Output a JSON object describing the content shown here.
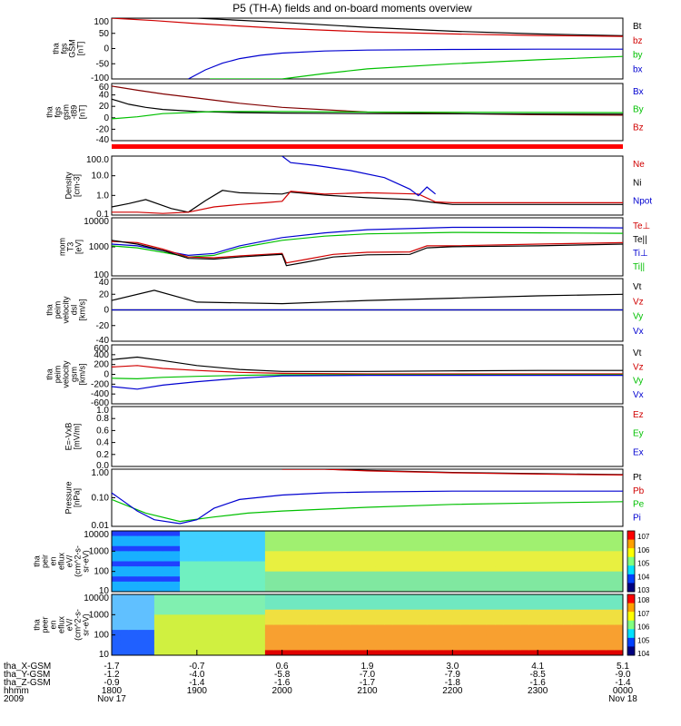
{
  "title": "P5 (TH-A) fields and on-board moments overview",
  "chart_data": [
    {
      "type": "line",
      "panel": "B field GSM",
      "ylabel": [
        "tha",
        "fgs",
        "GSM",
        "[nT]"
      ],
      "ylim": [
        -100,
        100
      ],
      "yticks": [
        "100",
        "50",
        "0",
        "-50",
        "-100"
      ],
      "legend": [
        {
          "name": "Bt",
          "color": "#000000"
        },
        {
          "name": "bz",
          "color": "#d00000"
        },
        {
          "name": "by",
          "color": "#00c000"
        },
        {
          "name": "bx",
          "color": "#0000d0"
        }
      ],
      "series": [
        {
          "name": "Bt",
          "color": "#000000",
          "x": [
            0.0,
            0.5,
            1.0,
            2.0,
            3.0,
            4.0,
            5.0,
            6.0
          ],
          "y": [
            150,
            125,
            108,
            86,
            70,
            57,
            48,
            42
          ]
        },
        {
          "name": "bz",
          "color": "#d00000",
          "x": [
            0.0,
            0.5,
            1.0,
            2.0,
            3.0,
            4.0,
            5.0,
            6.0
          ],
          "y": [
            105,
            92,
            82,
            66,
            55,
            48,
            43,
            40
          ]
        },
        {
          "name": "by",
          "color": "#00c000",
          "x": [
            1.15,
            1.5,
            2.0,
            2.5,
            3.0,
            4.0,
            5.0,
            6.0
          ],
          "y": [
            -150,
            -125,
            -100,
            -82,
            -67,
            -50,
            -37,
            -26
          ]
        },
        {
          "name": "bx",
          "color": "#0000d0",
          "x": [
            0.9,
            1.1,
            1.3,
            1.5,
            1.75,
            2.0,
            2.5,
            3.0,
            4.0,
            5.0,
            6.0
          ],
          "y": [
            -100,
            -70,
            -48,
            -33,
            -22,
            -15,
            -8,
            -5,
            -3,
            -2,
            -2
          ]
        }
      ]
    },
    {
      "type": "line",
      "panel": "B field GSM minus T89",
      "ylabel": [
        "tha",
        "fgs",
        "gsm",
        "-t89",
        "[nT]"
      ],
      "ylim": [
        -50,
        60
      ],
      "yticks": [
        "60",
        "40",
        "20",
        "0",
        "-20",
        "-40"
      ],
      "legend": [
        {
          "name": "Bx",
          "color": "#0000d0"
        },
        {
          "name": "By",
          "color": "#00c000"
        },
        {
          "name": "Bz",
          "color": "#d00000"
        }
      ],
      "series": [
        {
          "name": "Bz",
          "color": "#800000",
          "x": [
            0.0,
            0.3,
            0.6,
            1.0,
            1.5,
            2.0,
            3.0,
            4.0,
            5.0,
            6.0
          ],
          "y": [
            55,
            47,
            40,
            32,
            22,
            14,
            5,
            2,
            0,
            -1
          ]
        },
        {
          "name": "Bx",
          "color": "#000000",
          "x": [
            0.0,
            0.2,
            0.4,
            0.6,
            1.0,
            1.5,
            2.0,
            3.0,
            6.0
          ],
          "y": [
            30,
            20,
            14,
            10,
            6,
            4,
            3,
            2,
            1
          ]
        },
        {
          "name": "By",
          "color": "#00c000",
          "x": [
            0.0,
            0.3,
            0.6,
            0.9,
            1.2,
            1.5,
            2.0,
            3.0,
            6.0
          ],
          "y": [
            -8,
            -4,
            2,
            4,
            6,
            6,
            6,
            5,
            4
          ]
        }
      ]
    },
    {
      "type": "bar",
      "panel": "quality flag",
      "color": "#ff0000"
    },
    {
      "type": "line",
      "panel": "Density",
      "ylabel": [
        "Density",
        "[cm-3]"
      ],
      "yscale": "log",
      "ylim": [
        0.08,
        300
      ],
      "yticks": [
        "100.0",
        "10.0",
        "1.0",
        "0.1"
      ],
      "legend": [
        {
          "name": "Ne",
          "color": "#d00000"
        },
        {
          "name": "Ni",
          "color": "#000000"
        },
        {
          "name": "Npot",
          "color": "#0000d0"
        }
      ],
      "series": [
        {
          "name": "Ni",
          "color": "#000000",
          "x": [
            0.0,
            0.2,
            0.4,
            0.7,
            0.9,
            1.1,
            1.3,
            1.5,
            1.8,
            2.0,
            2.1,
            2.5,
            3.0,
            3.5,
            3.8,
            4.0,
            5.0,
            6.0
          ],
          "y": [
            0.25,
            0.4,
            0.7,
            0.2,
            0.12,
            0.6,
            2.5,
            1.8,
            1.6,
            1.5,
            2.0,
            1.3,
            0.9,
            0.7,
            0.45,
            0.35,
            0.35,
            0.35
          ]
        },
        {
          "name": "Ne",
          "color": "#d00000",
          "x": [
            0.0,
            0.3,
            0.6,
            0.9,
            1.2,
            1.5,
            1.8,
            2.0,
            2.1,
            2.5,
            3.0,
            3.4,
            3.6,
            3.8,
            4.0,
            5.0,
            6.0
          ],
          "y": [
            0.12,
            0.12,
            0.1,
            0.12,
            0.25,
            0.35,
            0.45,
            0.55,
            2.2,
            1.5,
            1.8,
            1.6,
            1.5,
            0.5,
            0.45,
            0.45,
            0.45
          ]
        },
        {
          "name": "Npot",
          "color": "#0000d0",
          "x": [
            2.0,
            2.1,
            2.4,
            2.8,
            3.2,
            3.5,
            3.6,
            3.7,
            3.8
          ],
          "y": [
            300,
            120,
            80,
            40,
            15,
            3,
            1.2,
            4,
            1.5
          ]
        }
      ]
    },
    {
      "type": "line",
      "panel": "Temperature",
      "ylabel": [
        "mom",
        "T3",
        "[eV]"
      ],
      "yscale": "log",
      "ylim": [
        20,
        10000
      ],
      "yticks": [
        "10000",
        "1000",
        "100"
      ],
      "legend": [
        {
          "name": "Te⊥",
          "color": "#d00000"
        },
        {
          "name": "Te||",
          "color": "#000000"
        },
        {
          "name": "Ti⊥",
          "color": "#0000d0"
        },
        {
          "name": "Ti||",
          "color": "#00c000"
        }
      ],
      "series": [
        {
          "name": "Ti⊥",
          "color": "#0000d0",
          "x": [
            0.0,
            0.3,
            0.6,
            0.9,
            1.2,
            1.5,
            2.0,
            2.5,
            3.0,
            4.0,
            5.0,
            6.0
          ],
          "y": [
            600,
            500,
            300,
            180,
            220,
            500,
            1200,
            2000,
            2800,
            3600,
            3600,
            3400
          ]
        },
        {
          "name": "Ti||",
          "color": "#00c000",
          "x": [
            0.0,
            0.3,
            0.6,
            0.9,
            1.2,
            1.5,
            2.0,
            2.5,
            3.0,
            4.0,
            5.0,
            6.0
          ],
          "y": [
            500,
            400,
            250,
            150,
            180,
            400,
            900,
            1400,
            1800,
            2100,
            2000,
            1900
          ]
        },
        {
          "name": "Te⊥",
          "color": "#d00000",
          "x": [
            0.0,
            0.3,
            0.6,
            0.9,
            1.2,
            1.5,
            1.8,
            2.0,
            2.05,
            2.3,
            2.6,
            3.0,
            3.5,
            3.7,
            4.0,
            5.0,
            6.0
          ],
          "y": [
            800,
            700,
            350,
            150,
            140,
            170,
            200,
            220,
            80,
            120,
            200,
            250,
            260,
            500,
            500,
            600,
            700
          ]
        },
        {
          "name": "Te||",
          "color": "#000000",
          "x": [
            0.0,
            0.3,
            0.6,
            0.9,
            1.2,
            1.5,
            1.8,
            2.0,
            2.05,
            2.3,
            2.6,
            3.0,
            3.5,
            3.7,
            4.0,
            5.0,
            6.0
          ],
          "y": [
            900,
            600,
            300,
            130,
            120,
            150,
            180,
            200,
            60,
            90,
            150,
            190,
            200,
            400,
            450,
            500,
            600
          ]
        }
      ]
    },
    {
      "type": "line",
      "panel": "Velocity DSL",
      "ylabel": [
        "tha",
        "peim",
        "velocity",
        "dsl",
        "[km/s]"
      ],
      "ylim": [
        -40,
        40
      ],
      "yticks": [
        "40",
        "20",
        "0",
        "-20",
        "-40"
      ],
      "legend": [
        {
          "name": "Vt",
          "color": "#000000"
        },
        {
          "name": "Vz",
          "color": "#d00000"
        },
        {
          "name": "Vy",
          "color": "#00c000"
        },
        {
          "name": "Vx",
          "color": "#0000d0"
        }
      ],
      "series": [
        {
          "name": "Vt",
          "color": "#000000",
          "x": [
            0.0,
            0.5,
            1.0,
            2.0,
            3.0,
            4.0,
            5.0,
            6.0
          ],
          "y": [
            12,
            25,
            10,
            8,
            12,
            15,
            18,
            20
          ]
        },
        {
          "name": "Vz",
          "color": "#d00000",
          "x": [
            0.0,
            1.0,
            3.0,
            6.0
          ],
          "y": [
            0,
            0,
            0,
            0
          ]
        },
        {
          "name": "Vy",
          "color": "#00c000",
          "x": [
            0.0,
            1.0,
            3.0,
            6.0
          ],
          "y": [
            0,
            0,
            0,
            0
          ]
        },
        {
          "name": "Vx",
          "color": "#0000d0",
          "x": [
            0.0,
            1.0,
            3.0,
            6.0
          ],
          "y": [
            0,
            0,
            0,
            0
          ]
        }
      ]
    },
    {
      "type": "line",
      "panel": "Velocity GSM",
      "ylabel": [
        "tha",
        "peim",
        "velocity",
        "gsm",
        "[km/s]"
      ],
      "ylim": [
        -600,
        600
      ],
      "yticks": [
        "600",
        "400",
        "200",
        "0",
        "-200",
        "-400",
        "-600"
      ],
      "legend": [
        {
          "name": "Vt",
          "color": "#000000"
        },
        {
          "name": "Vz",
          "color": "#d00000"
        },
        {
          "name": "Vy",
          "color": "#00c000"
        },
        {
          "name": "Vx",
          "color": "#0000d0"
        }
      ],
      "series": [
        {
          "name": "Vt",
          "color": "#000000",
          "x": [
            0.0,
            0.3,
            0.6,
            1.0,
            1.5,
            2.0,
            3.0,
            4.0,
            5.0,
            6.0
          ],
          "y": [
            300,
            350,
            280,
            180,
            100,
            60,
            60,
            70,
            80,
            80
          ]
        },
        {
          "name": "Vz",
          "color": "#d00000",
          "x": [
            0.0,
            0.3,
            0.6,
            1.0,
            1.5,
            2.0,
            3.0,
            6.0
          ],
          "y": [
            150,
            180,
            120,
            80,
            40,
            20,
            10,
            10
          ]
        },
        {
          "name": "Vy",
          "color": "#00c000",
          "x": [
            0.0,
            0.3,
            0.6,
            1.0,
            1.5,
            2.0,
            3.0,
            6.0
          ],
          "y": [
            -80,
            -90,
            -60,
            -40,
            -20,
            -10,
            -10,
            -10
          ]
        },
        {
          "name": "Vx",
          "color": "#0000d0",
          "x": [
            0.0,
            0.3,
            0.6,
            1.0,
            1.5,
            2.0,
            3.0,
            6.0
          ],
          "y": [
            -250,
            -300,
            -220,
            -150,
            -80,
            -30,
            -20,
            -20
          ]
        }
      ]
    },
    {
      "type": "line",
      "panel": "Electric field",
      "ylabel": [
        "E=-VxB",
        "[mV/m]"
      ],
      "ylim": [
        0,
        1
      ],
      "yticks": [
        "1.0",
        "0.8",
        "0.6",
        "0.4",
        "0.2",
        "0.0"
      ],
      "legend": [
        {
          "name": "Ez",
          "color": "#d00000"
        },
        {
          "name": "Ey",
          "color": "#00c000"
        },
        {
          "name": "Ex",
          "color": "#0000d0"
        }
      ],
      "series": []
    },
    {
      "type": "line",
      "panel": "Pressure",
      "ylabel": [
        "Pressure",
        "[nPa]"
      ],
      "yscale": "log",
      "ylim": [
        0.003,
        1.2
      ],
      "yticks": [
        "1.00",
        "0.10",
        "0.01"
      ],
      "legend": [
        {
          "name": "Pt",
          "color": "#000000"
        },
        {
          "name": "Pb",
          "color": "#d00000"
        },
        {
          "name": "Pe",
          "color": "#00c000"
        },
        {
          "name": "Pi",
          "color": "#0000d0"
        }
      ],
      "series": [
        {
          "name": "Pt",
          "color": "#000000",
          "x": [
            2.0,
            2.5,
            3.0,
            4.0,
            5.0,
            6.0
          ],
          "y": [
            1.5,
            1.25,
            1.05,
            0.85,
            0.75,
            0.68
          ]
        },
        {
          "name": "Pb",
          "color": "#d00000",
          "x": [
            2.0,
            2.5,
            3.0,
            4.0,
            5.0,
            6.0
          ],
          "y": [
            1.4,
            1.2,
            1.0,
            0.82,
            0.72,
            0.65
          ]
        },
        {
          "name": "Pe",
          "color": "#00c000",
          "x": [
            0.0,
            0.4,
            0.8,
            1.2,
            1.6,
            2.0,
            3.0,
            4.0,
            5.0,
            6.0
          ],
          "y": [
            0.05,
            0.012,
            0.005,
            0.008,
            0.012,
            0.015,
            0.022,
            0.03,
            0.035,
            0.04
          ]
        },
        {
          "name": "Pi",
          "color": "#0000d0",
          "x": [
            0.0,
            0.3,
            0.5,
            0.8,
            1.0,
            1.2,
            1.5,
            2.0,
            2.5,
            3.0,
            4.0,
            5.0,
            6.0
          ],
          "y": [
            0.1,
            0.015,
            0.006,
            0.004,
            0.006,
            0.02,
            0.05,
            0.08,
            0.1,
            0.11,
            0.12,
            0.12,
            0.12
          ]
        }
      ]
    },
    {
      "type": "heatmap",
      "panel": "Ion energy spectrogram",
      "ylabel": [
        "tha",
        "peir",
        "en",
        "eflux",
        "eV/",
        "(cm^2-s-",
        "sr-eV)"
      ],
      "yscale": "log",
      "yticks": [
        "10000",
        "1000",
        "100",
        "10"
      ],
      "colorbar_labels": [
        "10^7",
        "10^6",
        "10^5",
        "10^4",
        "10^3"
      ]
    },
    {
      "type": "heatmap",
      "panel": "Electron energy spectrogram",
      "ylabel": [
        "tha",
        "peer",
        "en",
        "eflux",
        "eV/",
        "(cm^2-s-",
        "sr-eV)"
      ],
      "yscale": "log",
      "yticks": [
        "10000",
        "1000",
        "100",
        "10"
      ],
      "colorbar_labels": [
        "10^8",
        "10^7",
        "10^6",
        "10^5",
        "10^4"
      ]
    }
  ],
  "xaxis": {
    "rows": [
      {
        "label": "tha_X-GSM",
        "values": [
          "-1.7",
          "-0.7",
          "0.6",
          "1.9",
          "3.0",
          "4.1",
          "5.1"
        ]
      },
      {
        "label": "tha_Y-GSM",
        "values": [
          "-1.2",
          "-4.0",
          "-5.8",
          "-7.0",
          "-7.9",
          "-8.5",
          "-9.0"
        ]
      },
      {
        "label": "tha_Z-GSM",
        "values": [
          "-0.9",
          "-1.4",
          "-1.6",
          "-1.7",
          "-1.8",
          "-1.6",
          "-1.4"
        ]
      },
      {
        "label": "hhmm",
        "values": [
          "1800",
          "1900",
          "2000",
          "2100",
          "2200",
          "2300",
          "0000"
        ]
      }
    ],
    "year": "2009",
    "date_start": "Nov 17",
    "date_end": "Nov 18"
  }
}
